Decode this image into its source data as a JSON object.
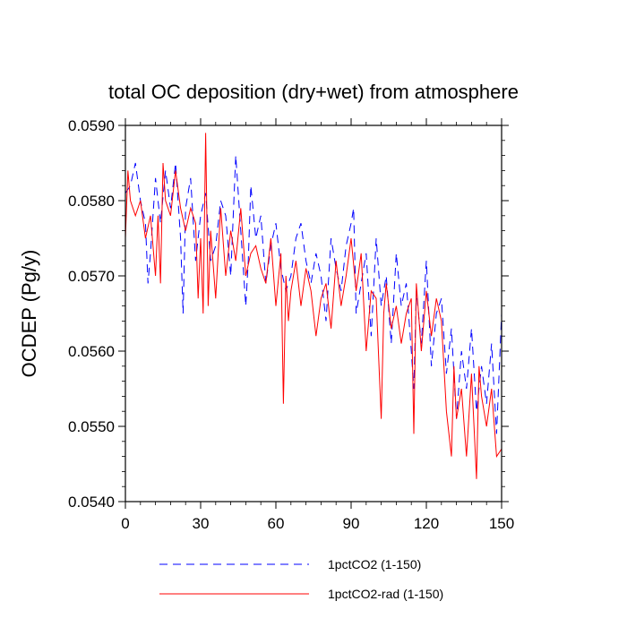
{
  "chart_data": {
    "type": "line",
    "title": "total OC deposition (dry+wet) from atmosphere",
    "xlabel": "",
    "ylabel": "OCDEP  (Pg/y)",
    "xlim": [
      0,
      150
    ],
    "ylim": [
      0.054,
      0.059
    ],
    "xticks": [
      0,
      30,
      60,
      90,
      120,
      150
    ],
    "xtick_labels": [
      "0",
      "30",
      "60",
      "90",
      "120",
      "150"
    ],
    "yticks": [
      0.054,
      0.055,
      0.056,
      0.057,
      0.058,
      0.059
    ],
    "ytick_labels": [
      "0.0540",
      "0.0550",
      "0.0560",
      "0.0570",
      "0.0580",
      "0.0590"
    ],
    "grid": false,
    "legend_position": "bottom",
    "series": [
      {
        "name": "1pctCO2 (1-150)",
        "color": "#0000ff",
        "style": "dashed",
        "x": [
          0,
          2,
          4,
          6,
          8,
          9,
          10,
          12,
          14,
          16,
          18,
          20,
          22,
          23,
          24,
          26,
          28,
          30,
          32,
          34,
          36,
          38,
          40,
          42,
          44,
          46,
          48,
          49,
          50,
          52,
          54,
          56,
          58,
          60,
          62,
          64,
          66,
          68,
          70,
          72,
          74,
          76,
          78,
          80,
          82,
          84,
          86,
          88,
          90,
          91,
          92,
          94,
          96,
          98,
          100,
          102,
          104,
          106,
          108,
          110,
          112,
          114,
          115,
          116,
          118,
          120,
          122,
          124,
          126,
          128,
          130,
          132,
          134,
          136,
          138,
          140,
          142,
          144,
          146,
          148,
          150
        ],
        "values": [
          0.0581,
          0.0582,
          0.0585,
          0.058,
          0.0577,
          0.0569,
          0.0573,
          0.0583,
          0.0577,
          0.0584,
          0.0579,
          0.0585,
          0.0575,
          0.0565,
          0.0579,
          0.0583,
          0.0572,
          0.0578,
          0.0581,
          0.0572,
          0.0574,
          0.058,
          0.0578,
          0.057,
          0.0586,
          0.0576,
          0.0566,
          0.0572,
          0.0582,
          0.0575,
          0.0578,
          0.0569,
          0.0574,
          0.0577,
          0.0571,
          0.0568,
          0.057,
          0.0575,
          0.0577,
          0.0572,
          0.0569,
          0.0573,
          0.057,
          0.0564,
          0.0575,
          0.0571,
          0.0568,
          0.0574,
          0.0577,
          0.0579,
          0.0565,
          0.0569,
          0.0573,
          0.0562,
          0.0575,
          0.0566,
          0.057,
          0.0561,
          0.0573,
          0.0566,
          0.0569,
          0.056,
          0.0555,
          0.0568,
          0.0561,
          0.0572,
          0.0558,
          0.0565,
          0.0567,
          0.0557,
          0.0563,
          0.0551,
          0.056,
          0.0555,
          0.0563,
          0.0552,
          0.0558,
          0.0553,
          0.0561,
          0.0549,
          0.0565
        ]
      },
      {
        "name": "1pctCO2-rad (1-150)",
        "color": "#ff0000",
        "style": "solid",
        "x": [
          0,
          1,
          2,
          4,
          6,
          8,
          10,
          12,
          13,
          14,
          15,
          16,
          18,
          20,
          22,
          24,
          26,
          28,
          29,
          30,
          31,
          32,
          33,
          34,
          36,
          38,
          40,
          42,
          44,
          46,
          48,
          50,
          52,
          54,
          56,
          58,
          60,
          62,
          63,
          64,
          65,
          66,
          68,
          70,
          72,
          74,
          76,
          78,
          80,
          82,
          84,
          86,
          88,
          90,
          92,
          94,
          96,
          98,
          100,
          102,
          103,
          104,
          106,
          108,
          110,
          112,
          114,
          115,
          116,
          118,
          120,
          122,
          124,
          126,
          128,
          130,
          131,
          132,
          134,
          136,
          138,
          140,
          141,
          142,
          144,
          146,
          148,
          150
        ],
        "values": [
          0.0575,
          0.0584,
          0.058,
          0.0578,
          0.058,
          0.0575,
          0.0578,
          0.057,
          0.0578,
          0.0569,
          0.0585,
          0.058,
          0.0578,
          0.0584,
          0.0579,
          0.0576,
          0.0579,
          0.0577,
          0.0567,
          0.0575,
          0.0565,
          0.0589,
          0.0566,
          0.0576,
          0.0567,
          0.0579,
          0.057,
          0.0576,
          0.0572,
          0.0579,
          0.057,
          0.0573,
          0.0574,
          0.0571,
          0.0569,
          0.0575,
          0.0566,
          0.0573,
          0.0553,
          0.057,
          0.0564,
          0.0568,
          0.0572,
          0.0566,
          0.0571,
          0.0568,
          0.0562,
          0.0567,
          0.0569,
          0.0563,
          0.0572,
          0.0566,
          0.057,
          0.0575,
          0.0568,
          0.0573,
          0.056,
          0.0568,
          0.0567,
          0.0551,
          0.0565,
          0.0569,
          0.0563,
          0.0566,
          0.0561,
          0.0565,
          0.0567,
          0.0549,
          0.0569,
          0.056,
          0.0568,
          0.0562,
          0.0567,
          0.0564,
          0.0552,
          0.0546,
          0.0558,
          0.0551,
          0.0555,
          0.0546,
          0.0557,
          0.0543,
          0.0558,
          0.0554,
          0.055,
          0.0555,
          0.0546,
          0.0547
        ]
      }
    ]
  }
}
